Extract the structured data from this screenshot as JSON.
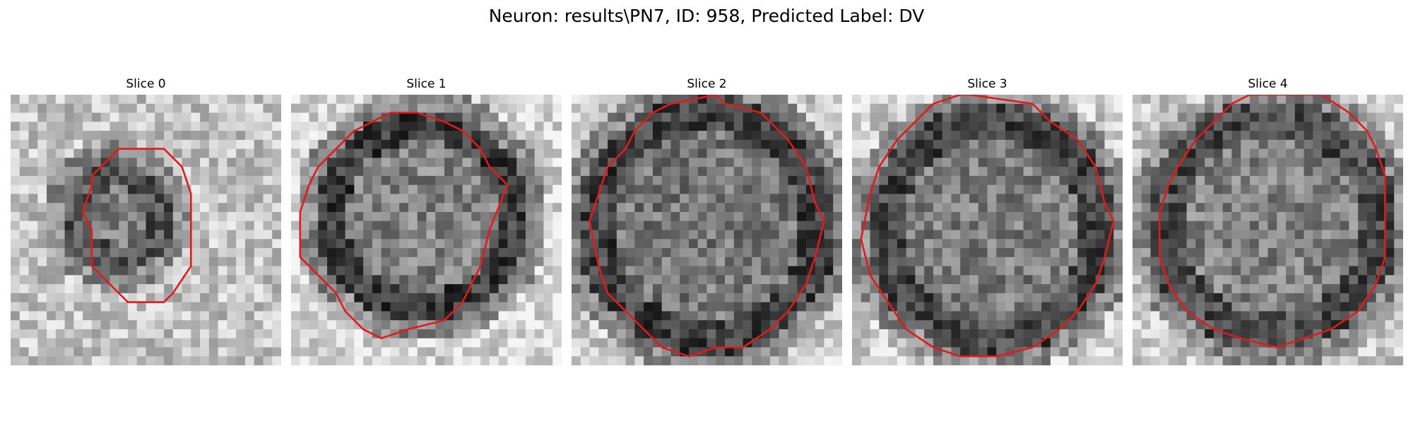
{
  "figure": {
    "title": "Neuron: results\\PN7, ID: 958, Predicted Label: DV"
  },
  "colors": {
    "contour": "#e31a1c"
  },
  "slices": [
    {
      "title": "Slice 0"
    },
    {
      "title": "Slice 1"
    },
    {
      "title": "Slice 2"
    },
    {
      "title": "Slice 3"
    },
    {
      "title": "Slice 4"
    }
  ]
}
